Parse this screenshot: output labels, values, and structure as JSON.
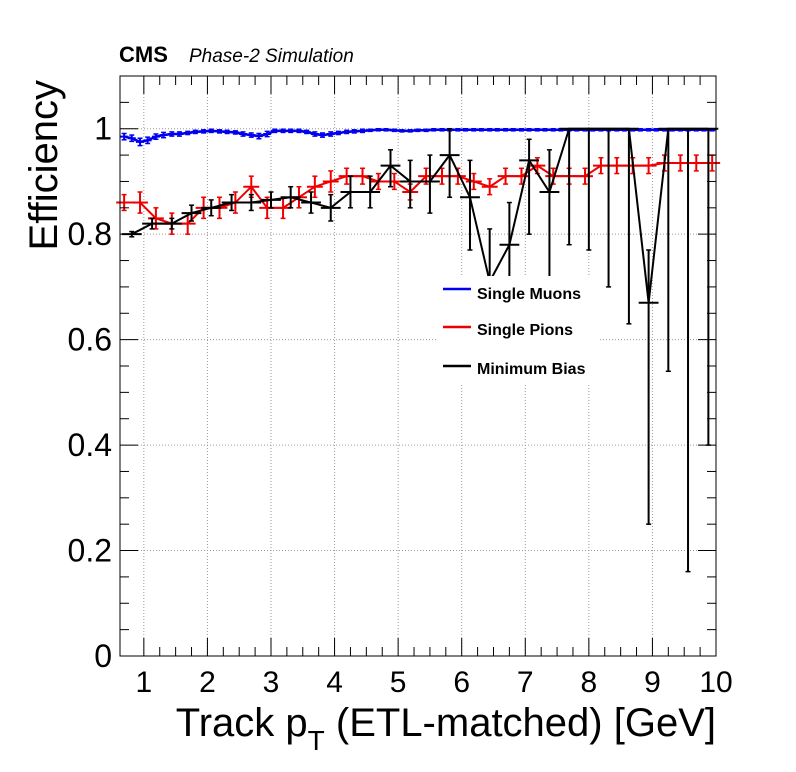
{
  "header": {
    "experiment": "CMS",
    "subtitle": "Phase-2 Simulation"
  },
  "chart_data": {
    "type": "line",
    "xlabel_main": "Track p",
    "xlabel_sub": "T",
    "xlabel_rest": " (ETL-matched) [GeV]",
    "ylabel": "Efficiency",
    "xlim": [
      0.625,
      10.0
    ],
    "ylim": [
      0,
      1.1
    ],
    "xticks": [
      1,
      2,
      3,
      4,
      5,
      6,
      7,
      8,
      9,
      10
    ],
    "yticks": [
      0,
      0.2,
      0.4,
      0.6,
      0.8,
      1
    ],
    "ytick_labels": [
      "0",
      "0.2",
      "0.4",
      "0.6",
      "0.8",
      "1"
    ],
    "grid": true,
    "legend_position": "center-right",
    "series": [
      {
        "name": "Single Muons",
        "color": "#0000ee",
        "x": [
          0.69,
          0.81,
          0.94,
          1.06,
          1.19,
          1.31,
          1.44,
          1.56,
          1.69,
          1.81,
          1.94,
          2.06,
          2.19,
          2.31,
          2.44,
          2.56,
          2.69,
          2.81,
          2.94,
          3.06,
          3.19,
          3.31,
          3.44,
          3.56,
          3.69,
          3.81,
          3.94,
          4.06,
          4.19,
          4.31,
          4.44,
          4.56,
          4.69,
          4.81,
          4.94,
          5.06,
          5.19,
          5.31,
          5.44,
          5.56,
          5.69,
          5.81,
          5.94,
          6.06,
          6.19,
          6.31,
          6.44,
          6.56,
          6.69,
          6.81,
          6.94,
          7.06,
          7.19,
          7.31,
          7.44,
          7.56,
          7.69,
          7.81,
          7.94,
          8.06,
          8.19,
          8.31,
          8.44,
          8.56,
          8.69,
          8.81,
          8.94,
          9.06,
          9.19,
          9.31,
          9.44,
          9.56,
          9.69,
          9.81,
          9.94
        ],
        "y": [
          0.985,
          0.982,
          0.975,
          0.978,
          0.985,
          0.988,
          0.99,
          0.99,
          0.992,
          0.994,
          0.995,
          0.996,
          0.995,
          0.994,
          0.993,
          0.99,
          0.988,
          0.986,
          0.99,
          0.996,
          0.996,
          0.996,
          0.996,
          0.994,
          0.99,
          0.988,
          0.99,
          0.992,
          0.994,
          0.995,
          0.996,
          0.997,
          0.998,
          0.998,
          0.997,
          0.996,
          0.996,
          0.997,
          0.997,
          0.998,
          0.998,
          0.998,
          0.998,
          0.998,
          0.998,
          0.998,
          0.998,
          0.998,
          0.998,
          0.998,
          0.998,
          0.998,
          0.998,
          0.998,
          0.998,
          0.998,
          0.998,
          0.998,
          0.998,
          0.998,
          0.998,
          0.998,
          0.998,
          0.998,
          0.998,
          0.998,
          0.998,
          0.998,
          0.998,
          0.998,
          0.998,
          0.998,
          0.998,
          0.998,
          0.998
        ],
        "xerr": 0.0625,
        "yerr": [
          0.006,
          0.006,
          0.007,
          0.006,
          0.005,
          0.005,
          0.004,
          0.004,
          0.003,
          0.003,
          0.003,
          0.003,
          0.003,
          0.003,
          0.003,
          0.004,
          0.004,
          0.005,
          0.005,
          0.003,
          0.003,
          0.003,
          0.003,
          0.003,
          0.004,
          0.004,
          0.004,
          0.003,
          0.003,
          0.003,
          0.003,
          0.002,
          0.002,
          0.002,
          0.002,
          0.002,
          0.002,
          0.002,
          0.002,
          0.002,
          0.002,
          0.002,
          0.002,
          0.002,
          0.002,
          0.002,
          0.002,
          0.002,
          0.002,
          0.002,
          0.002,
          0.002,
          0.002,
          0.002,
          0.002,
          0.002,
          0.002,
          0.002,
          0.002,
          0.002,
          0.002,
          0.002,
          0.002,
          0.002,
          0.002,
          0.002,
          0.002,
          0.002,
          0.002,
          0.002,
          0.002,
          0.002,
          0.002,
          0.002,
          0.002
        ]
      },
      {
        "name": "Single Pions",
        "color": "#ee0000",
        "x": [
          0.69,
          0.94,
          1.19,
          1.44,
          1.69,
          1.94,
          2.19,
          2.44,
          2.69,
          2.94,
          3.19,
          3.44,
          3.69,
          3.94,
          4.19,
          4.44,
          4.69,
          4.94,
          5.19,
          5.44,
          5.69,
          5.94,
          6.19,
          6.44,
          6.69,
          6.94,
          7.19,
          7.44,
          7.69,
          7.94,
          8.19,
          8.44,
          8.69,
          8.94,
          9.19,
          9.44,
          9.69,
          9.94
        ],
        "y": [
          0.86,
          0.86,
          0.83,
          0.82,
          0.82,
          0.85,
          0.85,
          0.86,
          0.89,
          0.85,
          0.85,
          0.87,
          0.89,
          0.9,
          0.91,
          0.91,
          0.9,
          0.9,
          0.88,
          0.91,
          0.91,
          0.91,
          0.9,
          0.89,
          0.91,
          0.91,
          0.93,
          0.91,
          0.91,
          0.91,
          0.93,
          0.93,
          0.93,
          0.93,
          0.935,
          0.935,
          0.935,
          0.935
        ],
        "xerr": 0.125,
        "yerr": [
          0.015,
          0.02,
          0.02,
          0.02,
          0.02,
          0.02,
          0.02,
          0.02,
          0.02,
          0.02,
          0.02,
          0.02,
          0.02,
          0.02,
          0.015,
          0.015,
          0.015,
          0.015,
          0.015,
          0.015,
          0.015,
          0.015,
          0.015,
          0.015,
          0.015,
          0.015,
          0.015,
          0.015,
          0.015,
          0.015,
          0.015,
          0.015,
          0.015,
          0.015,
          0.015,
          0.015,
          0.015,
          0.015
        ]
      },
      {
        "name": "Minimum Bias",
        "color": "#000000",
        "x": [
          0.81,
          1.13,
          1.44,
          1.75,
          2.06,
          2.38,
          2.69,
          3.0,
          3.31,
          3.63,
          3.94,
          4.25,
          4.56,
          4.88,
          5.19,
          5.5,
          5.81,
          6.13,
          6.44,
          6.75,
          7.06,
          7.38,
          7.69,
          8.0,
          8.31,
          8.63,
          8.94,
          9.25,
          9.56,
          9.88
        ],
        "y": [
          0.8,
          0.82,
          0.82,
          0.84,
          0.85,
          0.86,
          0.86,
          0.865,
          0.87,
          0.86,
          0.85,
          0.88,
          0.88,
          0.93,
          0.9,
          0.9,
          0.95,
          0.87,
          0.71,
          0.78,
          0.94,
          0.88,
          1.0,
          1.0,
          1.0,
          1.0,
          0.67,
          1.0,
          1.0,
          1.0
        ],
        "xerr": 0.156,
        "yerr_low": [
          0.005,
          0.01,
          0.01,
          0.015,
          0.015,
          0.015,
          0.015,
          0.015,
          0.02,
          0.02,
          0.025,
          0.03,
          0.03,
          0.04,
          0.05,
          0.06,
          0.08,
          0.1,
          0.15,
          0.14,
          0.14,
          0.2,
          0.22,
          0.23,
          0.3,
          0.37,
          0.42,
          0.46,
          0.84,
          0.6
        ],
        "yerr_high": [
          0.005,
          0.01,
          0.01,
          0.015,
          0.015,
          0.015,
          0.015,
          0.015,
          0.02,
          0.02,
          0.025,
          0.03,
          0.03,
          0.03,
          0.04,
          0.05,
          0.05,
          0.07,
          0.1,
          0.08,
          0.04,
          0.08,
          0.0,
          0.0,
          0.0,
          0.0,
          0.1,
          0.0,
          0.0,
          0.0
        ]
      }
    ]
  }
}
